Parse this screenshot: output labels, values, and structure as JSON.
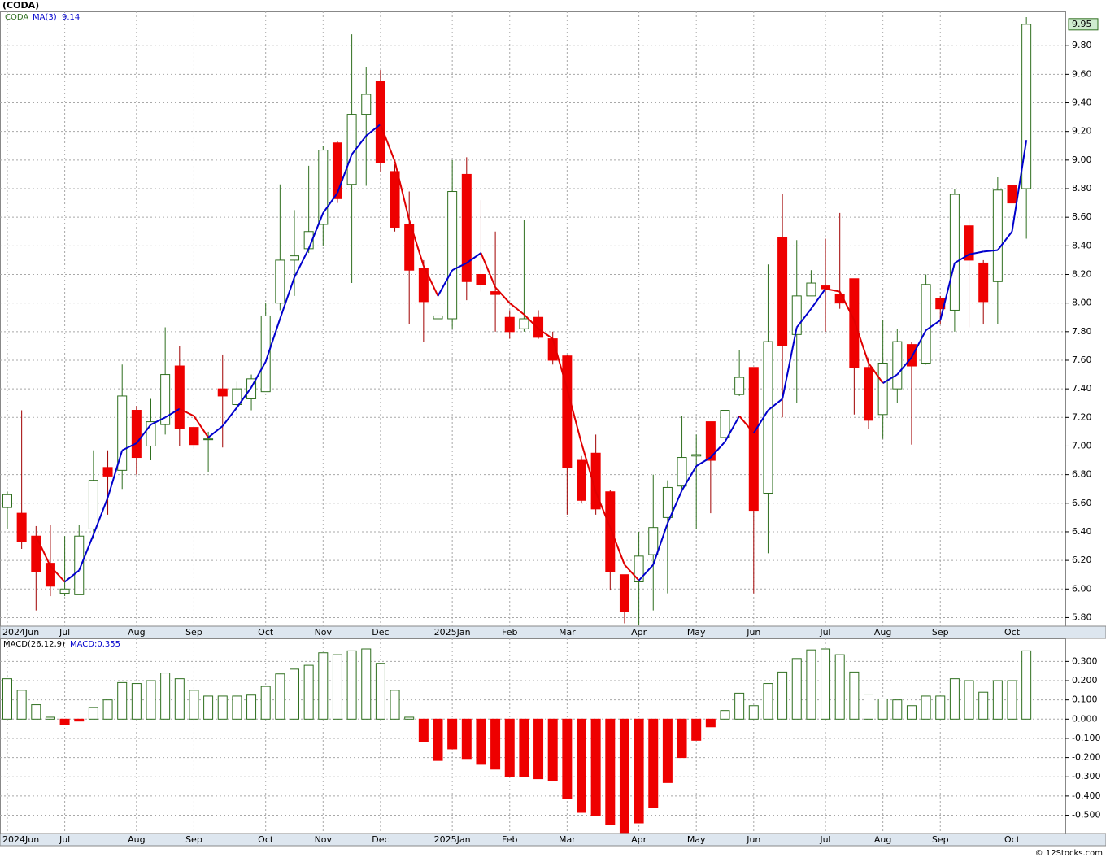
{
  "title": "(CODA)",
  "footer": "© 12Stocks.com",
  "chart_data": [
    {
      "type": "candlestick",
      "categories": [
        "2024Jun",
        null,
        null,
        null,
        "Jul",
        null,
        null,
        null,
        null,
        "Aug",
        null,
        null,
        null,
        "Sep",
        null,
        null,
        null,
        null,
        "Oct",
        null,
        null,
        null,
        "Nov",
        null,
        null,
        null,
        "Dec",
        null,
        null,
        null,
        null,
        "2025Jan",
        null,
        null,
        null,
        "Feb",
        null,
        null,
        null,
        "Mar",
        null,
        null,
        null,
        null,
        "Apr",
        null,
        null,
        null,
        "May",
        null,
        null,
        null,
        "Jun",
        null,
        null,
        null,
        null,
        "Jul",
        null,
        null,
        null,
        "Aug",
        null,
        null,
        null,
        "Sep",
        null,
        null,
        null,
        null,
        "Oct",
        null
      ],
      "series": [
        {
          "name": "CODA",
          "up_color": "#2f6f1f",
          "down_color": "#ee0000",
          "open": [
            6.57,
            6.53,
            6.37,
            6.18,
            5.97,
            5.96,
            6.42,
            6.85,
            6.83,
            7.25,
            7.0,
            7.15,
            7.56,
            7.13,
            7.05,
            7.4,
            7.29,
            7.33,
            7.38,
            8.0,
            8.3,
            8.38,
            8.55,
            9.12,
            8.83,
            9.32,
            9.55,
            8.92,
            8.55,
            8.24,
            7.89,
            7.89,
            8.9,
            8.2,
            8.08,
            7.9,
            7.82,
            7.9,
            7.75,
            7.63,
            6.9,
            6.95,
            6.68,
            6.1,
            6.05,
            6.24,
            6.5,
            6.72,
            6.93,
            7.17,
            7.06,
            7.36,
            7.55,
            6.67,
            8.46,
            7.78,
            8.05,
            8.12,
            8.06,
            8.17,
            7.55,
            7.22,
            7.4,
            7.71,
            7.58,
            8.03,
            7.95,
            8.54,
            8.28,
            8.15,
            8.82,
            8.8
          ],
          "high": [
            6.68,
            7.25,
            6.44,
            6.45,
            6.37,
            6.45,
            6.97,
            6.97,
            7.57,
            7.28,
            7.33,
            7.83,
            7.7,
            7.14,
            7.1,
            7.64,
            7.45,
            7.5,
            8.0,
            8.83,
            8.65,
            8.96,
            9.1,
            9.13,
            9.88,
            9.65,
            9.63,
            8.97,
            8.78,
            8.3,
            7.95,
            9.0,
            9.02,
            8.72,
            8.5,
            7.95,
            8.58,
            7.95,
            7.8,
            7.64,
            6.93,
            7.08,
            6.69,
            6.1,
            6.4,
            6.8,
            6.76,
            7.21,
            7.08,
            7.17,
            7.28,
            7.67,
            7.55,
            8.27,
            8.76,
            8.44,
            8.23,
            8.45,
            8.63,
            8.17,
            7.62,
            7.88,
            7.82,
            7.73,
            8.2,
            8.05,
            8.8,
            8.6,
            8.3,
            8.88,
            9.5,
            10.0
          ],
          "low": [
            6.42,
            6.28,
            5.85,
            5.95,
            5.95,
            5.96,
            6.35,
            6.52,
            6.7,
            6.8,
            6.9,
            7.08,
            7.0,
            6.98,
            6.82,
            6.99,
            7.22,
            7.25,
            7.38,
            7.95,
            8.05,
            8.35,
            8.4,
            8.7,
            8.14,
            8.82,
            8.92,
            8.5,
            7.85,
            7.73,
            7.75,
            7.82,
            8.02,
            8.08,
            7.8,
            7.75,
            7.8,
            7.75,
            7.57,
            6.52,
            6.6,
            6.52,
            5.99,
            5.76,
            5.75,
            5.85,
            5.97,
            6.7,
            6.42,
            6.53,
            7.02,
            7.35,
            5.97,
            6.25,
            7.2,
            7.3,
            8.05,
            7.8,
            7.96,
            7.22,
            7.12,
            7.05,
            7.3,
            7.01,
            7.57,
            7.85,
            7.8,
            7.83,
            7.85,
            7.85,
            8.55,
            8.45
          ],
          "close": [
            6.66,
            6.33,
            6.12,
            6.02,
            6.0,
            6.37,
            6.76,
            6.79,
            7.35,
            6.92,
            7.17,
            7.5,
            7.12,
            7.01,
            7.05,
            7.35,
            7.4,
            7.47,
            7.91,
            8.3,
            8.33,
            8.5,
            9.07,
            8.73,
            9.32,
            9.46,
            8.98,
            8.53,
            8.23,
            8.01,
            7.91,
            8.78,
            8.15,
            8.13,
            8.06,
            7.8,
            7.89,
            7.76,
            7.6,
            6.85,
            6.62,
            6.56,
            6.12,
            5.84,
            6.23,
            6.43,
            6.71,
            6.92,
            6.94,
            6.9,
            7.25,
            7.48,
            6.55,
            7.73,
            7.7,
            8.05,
            8.14,
            8.1,
            8.0,
            7.55,
            7.18,
            7.58,
            7.73,
            7.56,
            8.13,
            7.96,
            8.76,
            8.3,
            8.01,
            8.79,
            8.7,
            9.95
          ]
        },
        {
          "name": "MA(3)",
          "type": "line",
          "up_color": "#0000cc",
          "down_color": "#e00000",
          "values": [
            null,
            null,
            6.37,
            6.16,
            6.05,
            6.13,
            6.38,
            6.64,
            6.97,
            7.02,
            7.15,
            7.2,
            7.26,
            7.21,
            7.06,
            7.14,
            7.27,
            7.41,
            7.59,
            7.89,
            8.18,
            8.38,
            8.63,
            8.77,
            9.04,
            9.17,
            9.25,
            8.99,
            8.58,
            8.26,
            8.05,
            8.23,
            8.28,
            8.35,
            8.11,
            8.0,
            7.92,
            7.82,
            7.75,
            7.4,
            7.02,
            6.68,
            6.43,
            6.17,
            6.06,
            6.17,
            6.46,
            6.69,
            6.86,
            6.92,
            7.03,
            7.21,
            7.09,
            7.25,
            7.33,
            7.83,
            7.96,
            8.1,
            8.08,
            7.88,
            7.58,
            7.44,
            7.5,
            7.62,
            7.81,
            7.88,
            8.28,
            8.34,
            8.36,
            8.37,
            8.5,
            9.14
          ]
        }
      ],
      "ylim": [
        5.74,
        10.04
      ],
      "yticks": [
        {
          "value": 5.8,
          "label": "5.80"
        },
        {
          "value": 6.0,
          "label": "6.00"
        },
        {
          "value": 6.2,
          "label": "6.20"
        },
        {
          "value": 6.4,
          "label": "6.40"
        },
        {
          "value": 6.6,
          "label": "6.60"
        },
        {
          "value": 6.8,
          "label": "6.80"
        },
        {
          "value": 7.0,
          "label": "7.00"
        },
        {
          "value": 7.2,
          "label": "7.20"
        },
        {
          "value": 7.4,
          "label": "7.40"
        },
        {
          "value": 7.6,
          "label": "7.60"
        },
        {
          "value": 7.8,
          "label": "7.80"
        },
        {
          "value": 8.0,
          "label": "8.00"
        },
        {
          "value": 8.2,
          "label": "8.20"
        },
        {
          "value": 8.4,
          "label": "8.40"
        },
        {
          "value": 8.6,
          "label": "8.60"
        },
        {
          "value": 8.8,
          "label": "8.80"
        },
        {
          "value": 9.0,
          "label": "9.00"
        },
        {
          "value": 9.2,
          "label": "9.20"
        },
        {
          "value": 9.4,
          "label": "9.40"
        },
        {
          "value": 9.6,
          "label": "9.60"
        },
        {
          "value": 9.8,
          "label": "9.80"
        }
      ],
      "grid": true
    },
    {
      "type": "bar",
      "title": "MACD(26,12,9)",
      "legend_label": "MACD:0.355",
      "pos_color": "#2f6f1f",
      "neg_color": "#ee0000",
      "values": [
        0.21,
        0.15,
        0.075,
        0.01,
        -0.03,
        -0.01,
        0.06,
        0.1,
        0.19,
        0.185,
        0.2,
        0.24,
        0.21,
        0.15,
        0.12,
        0.12,
        0.12,
        0.125,
        0.17,
        0.235,
        0.26,
        0.28,
        0.345,
        0.335,
        0.355,
        0.365,
        0.29,
        0.15,
        0.01,
        -0.115,
        -0.215,
        -0.155,
        -0.205,
        -0.235,
        -0.26,
        -0.3,
        -0.3,
        -0.31,
        -0.32,
        -0.415,
        -0.485,
        -0.5,
        -0.55,
        -0.59,
        -0.54,
        -0.46,
        -0.33,
        -0.2,
        -0.11,
        -0.04,
        0.045,
        0.135,
        0.07,
        0.185,
        0.245,
        0.315,
        0.36,
        0.365,
        0.335,
        0.245,
        0.13,
        0.105,
        0.1,
        0.07,
        0.12,
        0.12,
        0.21,
        0.2,
        0.14,
        0.2,
        0.2,
        0.355
      ],
      "ylim": [
        -0.595,
        0.42
      ],
      "yticks": [
        {
          "value": 0.3,
          "label": "0.300"
        },
        {
          "value": 0.2,
          "label": "0.200"
        },
        {
          "value": 0.1,
          "label": "0.100"
        },
        {
          "value": 0,
          "label": "0.000"
        },
        {
          "value": -0.1,
          "label": "-0.100"
        },
        {
          "value": -0.2,
          "label": "-0.200"
        },
        {
          "value": -0.3,
          "label": "-0.300"
        },
        {
          "value": -0.4,
          "label": "-0.400"
        },
        {
          "value": -0.5,
          "label": "-0.500"
        }
      ],
      "grid": true
    }
  ]
}
